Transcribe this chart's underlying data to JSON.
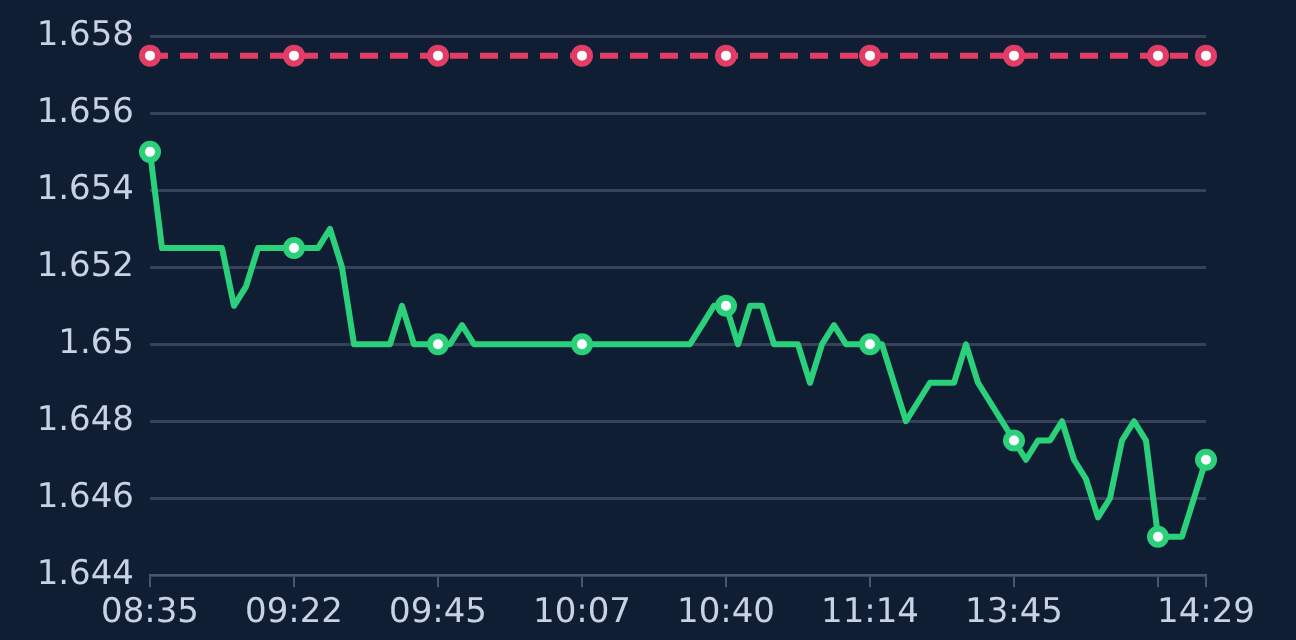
{
  "chart_data": {
    "type": "line",
    "categories": [
      "08:35",
      null,
      null,
      null,
      null,
      null,
      null,
      null,
      null,
      null,
      null,
      null,
      "09:22",
      null,
      null,
      null,
      null,
      null,
      null,
      null,
      null,
      null,
      null,
      null,
      "09:45",
      null,
      null,
      null,
      null,
      null,
      null,
      null,
      null,
      null,
      null,
      null,
      "10:07",
      null,
      null,
      null,
      null,
      null,
      null,
      null,
      null,
      null,
      null,
      null,
      "10:40",
      null,
      null,
      null,
      null,
      null,
      null,
      null,
      null,
      null,
      null,
      null,
      "11:14",
      null,
      null,
      null,
      null,
      null,
      null,
      null,
      null,
      null,
      null,
      null,
      "13:45",
      null,
      null,
      null,
      null,
      null,
      null,
      null,
      null,
      null,
      null,
      null,
      null,
      null,
      null,
      null,
      "14:29"
    ],
    "series": [
      {
        "color": "#e23d64",
        "line_style": "dashed",
        "marker": "none",
        "values": [
          1.6575,
          1.6575,
          1.6575,
          1.6575,
          1.6575,
          1.6575,
          1.6575,
          1.6575,
          1.6575,
          1.6575,
          1.6575,
          1.6575,
          1.6575,
          1.6575,
          1.6575,
          1.6575,
          1.6575,
          1.6575,
          1.6575,
          1.6575,
          1.6575,
          1.6575,
          1.6575,
          1.6575,
          1.6575,
          1.6575,
          1.6575,
          1.6575,
          1.6575,
          1.6575,
          1.6575,
          1.6575,
          1.6575,
          1.6575,
          1.6575,
          1.6575,
          1.6575,
          1.6575,
          1.6575,
          1.6575,
          1.6575,
          1.6575,
          1.6575,
          1.6575,
          1.6575,
          1.6575,
          1.6575,
          1.6575,
          1.6575,
          1.6575,
          1.6575,
          1.6575,
          1.6575,
          1.6575,
          1.6575,
          1.6575,
          1.6575,
          1.6575,
          1.6575,
          1.6575,
          1.6575,
          1.6575,
          1.6575,
          1.6575,
          1.6575,
          1.6575,
          1.6575,
          1.6575,
          1.6575,
          1.6575,
          1.6575,
          1.6575,
          1.6575,
          1.6575,
          1.6575,
          1.6575,
          1.6575,
          1.6575,
          1.6575,
          1.6575,
          1.6575,
          1.6575,
          1.6575,
          1.6575,
          1.6575,
          1.6575,
          1.6575,
          1.6575,
          1.6575
        ]
      },
      {
        "color": "#2bd07a",
        "line_style": "solid",
        "marker": "none",
        "values": [
          1.655,
          1.6525,
          1.6525,
          1.6525,
          1.6525,
          1.6525,
          1.6525,
          1.651,
          1.6515,
          1.6525,
          1.6525,
          1.6525,
          1.6525,
          1.6525,
          1.6525,
          1.653,
          1.652,
          1.65,
          1.65,
          1.65,
          1.65,
          1.651,
          1.65,
          1.65,
          1.65,
          1.65,
          1.6505,
          1.65,
          1.65,
          1.65,
          1.65,
          1.65,
          1.65,
          1.65,
          1.65,
          1.65,
          1.65,
          1.65,
          1.65,
          1.65,
          1.65,
          1.65,
          1.65,
          1.65,
          1.65,
          1.65,
          1.6505,
          1.651,
          1.651,
          1.65,
          1.651,
          1.651,
          1.65,
          1.65,
          1.65,
          1.649,
          1.65,
          1.6505,
          1.65,
          1.65,
          1.65,
          1.65,
          1.649,
          1.648,
          1.6485,
          1.649,
          1.649,
          1.649,
          1.65,
          1.649,
          1.6485,
          1.648,
          1.6475,
          1.647,
          1.6475,
          1.6475,
          1.648,
          1.647,
          1.6465,
          1.6455,
          1.646,
          1.6475,
          1.648,
          1.6475,
          1.645,
          1.645,
          1.645,
          1.646,
          1.647
        ]
      },
      {
        "type": "scatter",
        "color": "#e23d64",
        "marker": "circle",
        "values": [
          1.6575,
          null,
          null,
          null,
          null,
          null,
          null,
          null,
          null,
          null,
          null,
          null,
          1.6575,
          null,
          null,
          null,
          null,
          null,
          null,
          null,
          null,
          null,
          null,
          null,
          1.6575,
          null,
          null,
          null,
          null,
          null,
          null,
          null,
          null,
          null,
          null,
          null,
          1.6575,
          null,
          null,
          null,
          null,
          null,
          null,
          null,
          null,
          null,
          null,
          null,
          1.6575,
          null,
          null,
          null,
          null,
          null,
          null,
          null,
          null,
          null,
          null,
          null,
          1.6575,
          null,
          null,
          null,
          null,
          null,
          null,
          null,
          null,
          null,
          null,
          null,
          1.6575,
          null,
          null,
          null,
          null,
          null,
          null,
          null,
          null,
          null,
          null,
          null,
          1.6575,
          null,
          null,
          null,
          1.6575
        ]
      },
      {
        "type": "scatter",
        "color": "#2bd07a",
        "marker": "circle",
        "values": [
          1.655,
          null,
          null,
          null,
          null,
          null,
          null,
          null,
          null,
          null,
          null,
          null,
          1.6525,
          null,
          null,
          null,
          null,
          null,
          null,
          null,
          null,
          null,
          null,
          null,
          1.65,
          null,
          null,
          null,
          null,
          null,
          null,
          null,
          null,
          null,
          null,
          null,
          1.65,
          null,
          null,
          null,
          null,
          null,
          null,
          null,
          null,
          null,
          null,
          null,
          1.651,
          null,
          null,
          null,
          null,
          null,
          null,
          null,
          null,
          null,
          null,
          null,
          1.65,
          null,
          null,
          null,
          null,
          null,
          null,
          null,
          null,
          null,
          null,
          null,
          1.6475,
          null,
          null,
          null,
          null,
          null,
          null,
          null,
          null,
          null,
          null,
          null,
          1.645,
          null,
          null,
          null,
          1.647
        ]
      }
    ],
    "ylim": [
      1.644,
      1.658
    ],
    "yticks": [
      1.644,
      1.646,
      1.648,
      1.65,
      1.652,
      1.654,
      1.656,
      1.658
    ],
    "grid": "y"
  }
}
